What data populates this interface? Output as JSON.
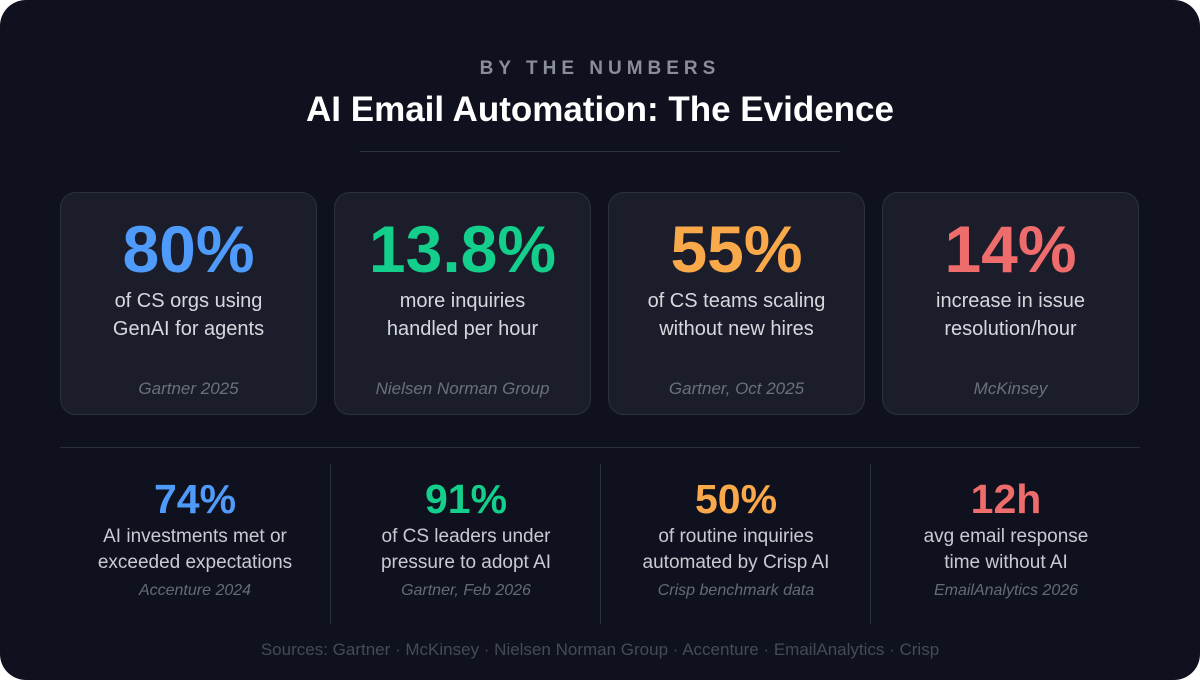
{
  "header": {
    "eyebrow": "BY THE NUMBERS",
    "title": "AI Email Automation: The Evidence"
  },
  "colors": {
    "blue": "#4f9bfb",
    "green": "#13cf8b",
    "orange": "#f9a94a",
    "red": "#ef6c6c"
  },
  "cards": [
    {
      "value": "80%",
      "line1": "of CS orgs using",
      "line2": "GenAI for agents",
      "source": "Gartner 2025",
      "color": "#4f9bfb"
    },
    {
      "value": "13.8%",
      "line1": "more inquiries",
      "line2": "handled per hour",
      "source": "Nielsen Norman Group",
      "color": "#13cf8b"
    },
    {
      "value": "55%",
      "line1": "of CS teams scaling",
      "line2": "without new hires",
      "source": "Gartner, Oct 2025",
      "color": "#f9a94a"
    },
    {
      "value": "14%",
      "line1": "increase in issue",
      "line2": "resolution/hour",
      "source": "McKinsey",
      "color": "#ef6c6c"
    }
  ],
  "stats": [
    {
      "value": "74%",
      "line1": "AI investments met or",
      "line2": "exceeded expectations",
      "source": "Accenture 2024",
      "color": "#4f9bfb"
    },
    {
      "value": "91%",
      "line1": "of CS leaders under",
      "line2": "pressure to adopt AI",
      "source": "Gartner, Feb 2026",
      "color": "#13cf8b"
    },
    {
      "value": "50%",
      "line1": "of routine inquiries",
      "line2": "automated by Crisp AI",
      "source": "Crisp benchmark data",
      "color": "#f9a94a"
    },
    {
      "value": "12h",
      "line1": "avg email response",
      "line2": "time without AI",
      "source": "EmailAnalytics 2026",
      "color": "#ef6c6c"
    }
  ],
  "footer": {
    "sources": "Sources: Gartner · McKinsey · Nielsen Norman Group · Accenture · EmailAnalytics · Crisp"
  }
}
